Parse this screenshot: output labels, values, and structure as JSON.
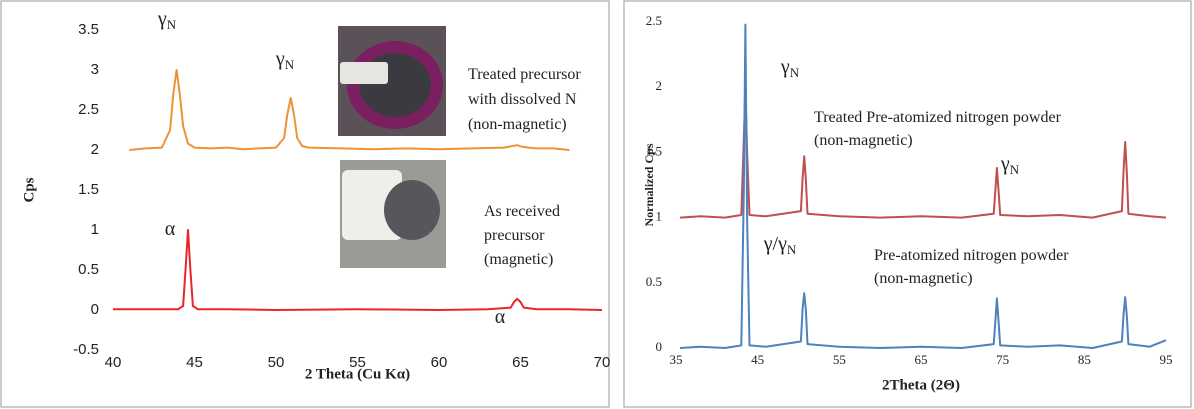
{
  "chart_data": [
    {
      "type": "line",
      "x_label": "2 Theta (Cu Kα)",
      "y_label": "Cps",
      "xlim": [
        40,
        70
      ],
      "xticks": [
        40,
        45,
        50,
        55,
        60,
        65,
        70
      ],
      "ylim": [
        -0.5,
        3.5
      ],
      "yticks": [
        -0.5,
        0,
        0.5,
        1,
        1.5,
        2,
        2.5,
        3,
        3.5
      ],
      "grid": false,
      "series": [
        {
          "color": "#f0913a",
          "x": [
            41,
            42,
            43,
            43.5,
            43.7,
            43.9,
            44.1,
            44.3,
            44.6,
            45,
            46,
            47,
            48,
            49,
            50,
            50.5,
            50.7,
            50.9,
            51.1,
            51.3,
            51.6,
            52,
            54,
            56,
            58,
            60,
            62,
            64,
            64.5,
            64.8,
            65.1,
            65.5,
            66,
            67,
            68
          ],
          "values": [
            2.0,
            2.02,
            2.03,
            2.25,
            2.7,
            3.0,
            2.7,
            2.3,
            2.08,
            2.03,
            2.02,
            2.03,
            2.01,
            2.02,
            2.03,
            2.15,
            2.45,
            2.65,
            2.45,
            2.15,
            2.05,
            2.03,
            2.02,
            2.01,
            2.02,
            2.01,
            2.02,
            2.03,
            2.05,
            2.06,
            2.04,
            2.03,
            2.02,
            2.02,
            2.0
          ]
        },
        {
          "color": "#e8262a",
          "x": [
            40,
            42,
            44,
            44.3,
            44.45,
            44.6,
            44.75,
            44.9,
            45.2,
            47,
            50,
            55,
            60,
            63,
            64.4,
            64.6,
            64.8,
            65.0,
            65.2,
            66,
            68,
            70
          ],
          "values": [
            0.01,
            0.01,
            0.01,
            0.05,
            0.5,
            1.0,
            0.5,
            0.05,
            0.01,
            0.01,
            0.0,
            0.01,
            0.0,
            0.01,
            0.03,
            0.1,
            0.14,
            0.1,
            0.03,
            0.01,
            0.01,
            0.0
          ]
        }
      ],
      "annotations": [
        {
          "text": "γ",
          "sub": "N"
        },
        {
          "text": "γ",
          "sub": "N"
        },
        {
          "text": "Treated precursor"
        },
        {
          "text": "with dissolved N"
        },
        {
          "text": "(non-magnetic)"
        },
        {
          "text": "As received"
        },
        {
          "text": "precursor"
        },
        {
          "text": "(magnetic)"
        },
        {
          "text": "α"
        },
        {
          "text": "α"
        }
      ]
    },
    {
      "type": "line",
      "x_label": "2Theta (2Θ)",
      "y_label": "Normalized Cps",
      "xlim": [
        35,
        95
      ],
      "xticks": [
        35,
        45,
        55,
        65,
        75,
        85,
        95
      ],
      "ylim": [
        0,
        2.5
      ],
      "yticks": [
        0,
        0.5,
        1,
        1.5,
        2,
        2.5
      ],
      "grid": false,
      "series": [
        {
          "color": "#c0504d",
          "x": [
            35.5,
            38,
            41,
            43,
            43.3,
            43.5,
            43.7,
            44,
            46,
            50.3,
            50.5,
            50.7,
            50.9,
            51.1,
            55,
            60,
            65,
            70,
            73.9,
            74.1,
            74.3,
            74.5,
            74.7,
            78,
            82,
            86,
            89.6,
            89.8,
            90.0,
            90.2,
            90.4,
            93,
            95
          ],
          "values": [
            1.0,
            1.01,
            1.0,
            1.02,
            1.6,
            2.0,
            1.5,
            1.02,
            1.01,
            1.05,
            1.3,
            1.47,
            1.3,
            1.03,
            1.01,
            1.0,
            1.01,
            1.0,
            1.03,
            1.2,
            1.38,
            1.2,
            1.02,
            1.01,
            1.02,
            1.0,
            1.05,
            1.35,
            1.58,
            1.35,
            1.03,
            1.01,
            1.0
          ]
        },
        {
          "color": "#4f81bd",
          "x": [
            35.5,
            38,
            41,
            43,
            43.3,
            43.5,
            43.7,
            44,
            46,
            50.3,
            50.5,
            50.7,
            50.9,
            51.1,
            55,
            60,
            65,
            70,
            73.9,
            74.1,
            74.3,
            74.5,
            74.7,
            78,
            82,
            86,
            89.6,
            89.8,
            90.0,
            90.2,
            90.4,
            93,
            95
          ],
          "values": [
            0.0,
            0.01,
            0.0,
            0.02,
            1.2,
            2.48,
            1.0,
            0.02,
            0.01,
            0.05,
            0.3,
            0.42,
            0.3,
            0.03,
            0.01,
            0.0,
            0.01,
            0.0,
            0.03,
            0.2,
            0.38,
            0.2,
            0.02,
            0.01,
            0.02,
            0.0,
            0.05,
            0.25,
            0.39,
            0.25,
            0.03,
            0.01,
            0.06
          ]
        }
      ],
      "annotations": [
        {
          "text": "γ",
          "sub": "N"
        },
        {
          "text": "Treated Pre-atomized nitrogen powder"
        },
        {
          "text": "(non-magnetic)"
        },
        {
          "text": "γ",
          "sub": "N"
        },
        {
          "text": "γ/γ",
          "sub": "N"
        },
        {
          "text": "Pre-atomized nitrogen powder"
        },
        {
          "text": "(non-magnetic)"
        }
      ]
    }
  ]
}
